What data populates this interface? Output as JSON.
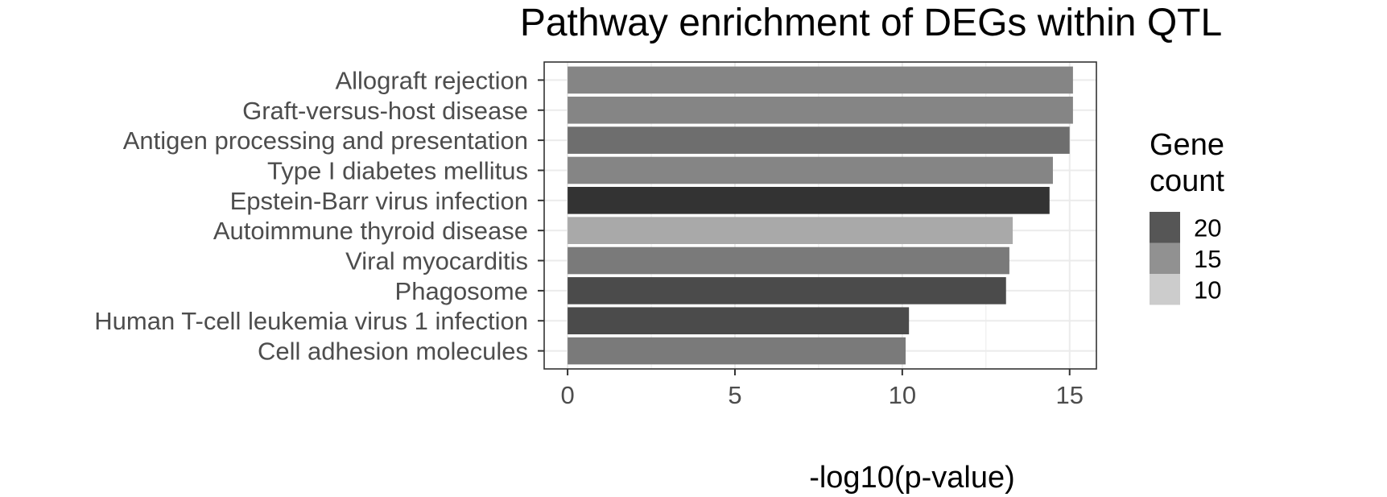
{
  "chart_data": {
    "type": "bar",
    "orientation": "horizontal",
    "title": "Pathway enrichment of DEGs within QTL",
    "xlabel": "-log10(p-value)",
    "ylabel": "",
    "xlim": [
      -0.7,
      15.8
    ],
    "x_ticks": [
      0,
      5,
      10,
      15
    ],
    "grid": true,
    "categories": [
      "Allograft rejection",
      "Graft-versus-host disease",
      "Antigen processing and presentation",
      "Type I diabetes mellitus",
      "Epstein-Barr virus infection",
      "Autoimmune thyroid disease",
      "Viral myocarditis",
      "Phagosome",
      "Human T-cell leukemia virus 1 infection",
      "Cell adhesion molecules"
    ],
    "values": [
      15.1,
      15.1,
      15.0,
      14.5,
      14.4,
      13.3,
      13.2,
      13.1,
      10.2,
      10.1
    ],
    "gene_counts": [
      16,
      16,
      18,
      16,
      23,
      13,
      17,
      21,
      21,
      17
    ],
    "legend": {
      "title_lines": [
        "Gene",
        "count"
      ],
      "placement": "right",
      "entries": [
        20,
        15,
        10
      ],
      "color_range": {
        "low_value": 10,
        "low_color": "#cccccc",
        "high_value": 23,
        "high_color": "#333333"
      }
    }
  }
}
